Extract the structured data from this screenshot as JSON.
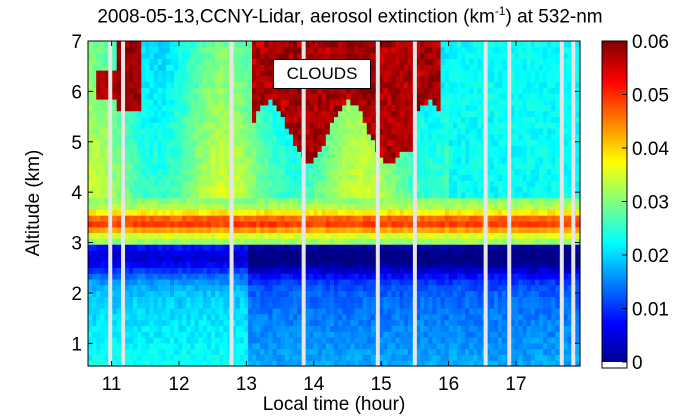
{
  "chart_data": {
    "type": "heatmap",
    "title_text": "2008-05-13,CCNY-Lidar, aerosol extinction (km",
    "title_sup": "-1",
    "title_suffix": ") at 532-nm",
    "xlabel": "Local time (hour)",
    "ylabel": "Altitude (km)",
    "xlim": [
      10.65,
      17.95
    ],
    "ylim": [
      0.55,
      7.0
    ],
    "x_ticks": [
      "11",
      "12",
      "13",
      "14",
      "15",
      "16",
      "17"
    ],
    "y_ticks": [
      "1",
      "2",
      "3",
      "4",
      "5",
      "6",
      "7"
    ],
    "colorbar_ticks": [
      "0",
      "0.01",
      "0.02",
      "0.03",
      "0.04",
      "0.05",
      "0.06"
    ],
    "colorbar_range": [
      0,
      0.06
    ],
    "colormap": "jet",
    "annotation": "CLOUDS",
    "data_gaps_hours": [
      10.98,
      11.17,
      12.78,
      13.85,
      14.95,
      15.5,
      16.55,
      16.9,
      17.68,
      17.85
    ],
    "layers": {
      "boundary_layer_top_km": 3.3,
      "low_extinction_band_km": [
        2.3,
        3.1
      ],
      "cloud_period_hours": [
        13.1,
        15.9
      ]
    }
  }
}
